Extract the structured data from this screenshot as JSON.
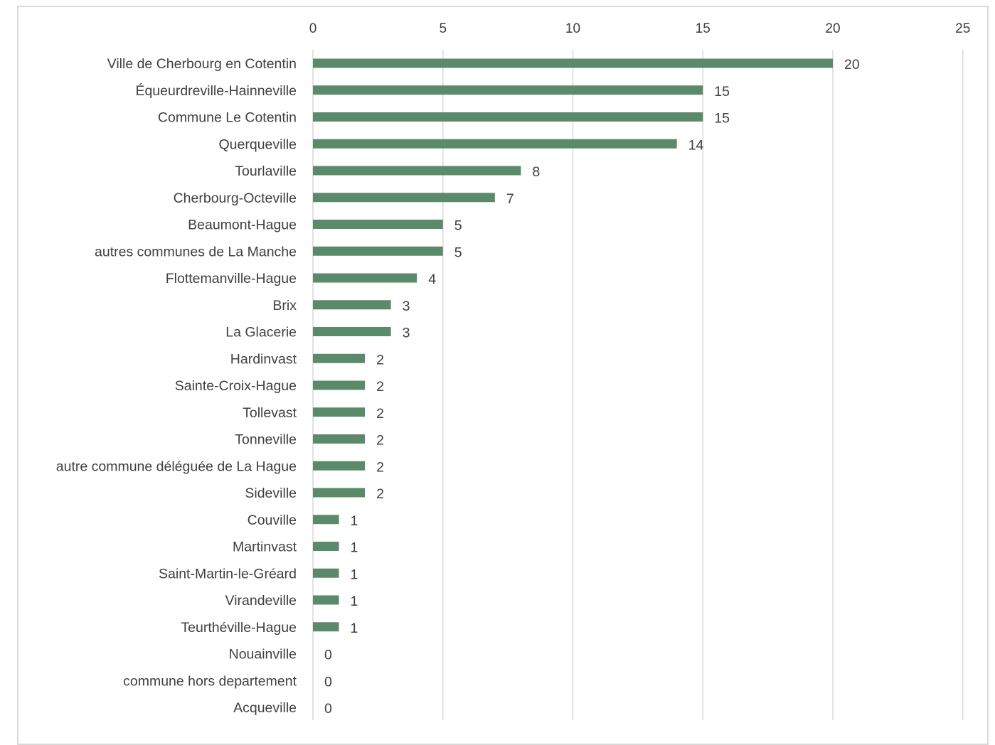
{
  "chart_data": {
    "type": "bar",
    "orientation": "horizontal",
    "title": "",
    "xlabel": "",
    "ylabel": "",
    "xlim": [
      0,
      25
    ],
    "x_ticks": [
      0,
      5,
      10,
      15,
      20,
      25
    ],
    "x_tick_labels": [
      "0",
      "5",
      "10",
      "15",
      "20",
      "25"
    ],
    "x_axis_position": "top",
    "grid": true,
    "legend": "none",
    "bar_color": "#5b8a6b",
    "grid_color": "#d9d9d9",
    "text_color": "#404040",
    "categories": [
      "Ville de Cherbourg en Cotentin",
      "Équeurdreville-Hainneville",
      "Commune Le Cotentin",
      "Querqueville",
      "Tourlaville",
      "Cherbourg-Octeville",
      "Beaumont-Hague",
      "autres communes de La Manche",
      "Flottemanville-Hague",
      "Brix",
      "La Glacerie",
      "Hardinvast",
      "Sainte-Croix-Hague",
      "Tollevast",
      "Tonneville",
      "autre commune déléguée de La Hague",
      "Sideville",
      "Couville",
      "Martinvast",
      "Saint-Martin-le-Gréard",
      "Virandeville",
      "Teurthéville-Hague",
      "Nouainville",
      "commune hors departement",
      "Acqueville"
    ],
    "values": [
      20,
      15,
      15,
      14,
      8,
      7,
      5,
      5,
      4,
      3,
      3,
      2,
      2,
      2,
      2,
      2,
      2,
      1,
      1,
      1,
      1,
      1,
      0,
      0,
      0
    ],
    "data_labels": [
      "20",
      "15",
      "15",
      "14",
      "8",
      "7",
      "5",
      "5",
      "4",
      "3",
      "3",
      "2",
      "2",
      "2",
      "2",
      "2",
      "2",
      "1",
      "1",
      "1",
      "1",
      "1",
      "0",
      "0",
      "0"
    ]
  }
}
